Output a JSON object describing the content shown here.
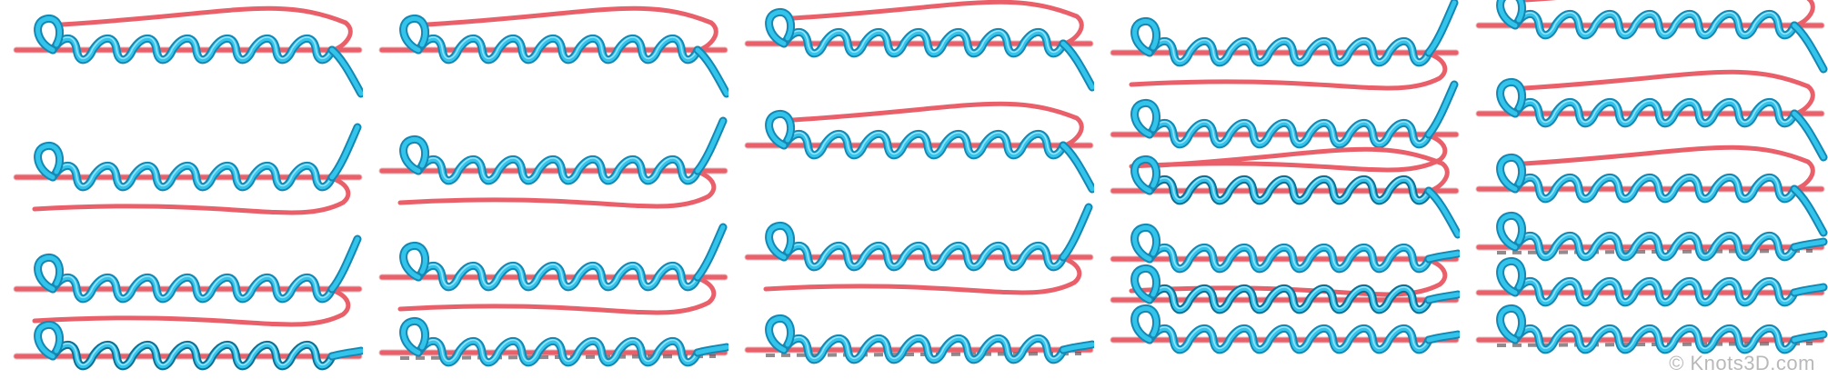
{
  "watermark": {
    "text": "© Knots3D.com"
  },
  "colors": {
    "background": "#ffffff",
    "rope_red": "#e9606a",
    "rope_blue": "#33c4ec",
    "rope_blue_shadow": "#1488b3",
    "watermark": "#b9b9b9"
  },
  "illustration": {
    "subject": "step-sequence",
    "columns": 5,
    "steps_per_column": [
      4,
      4,
      4,
      6,
      6
    ]
  }
}
